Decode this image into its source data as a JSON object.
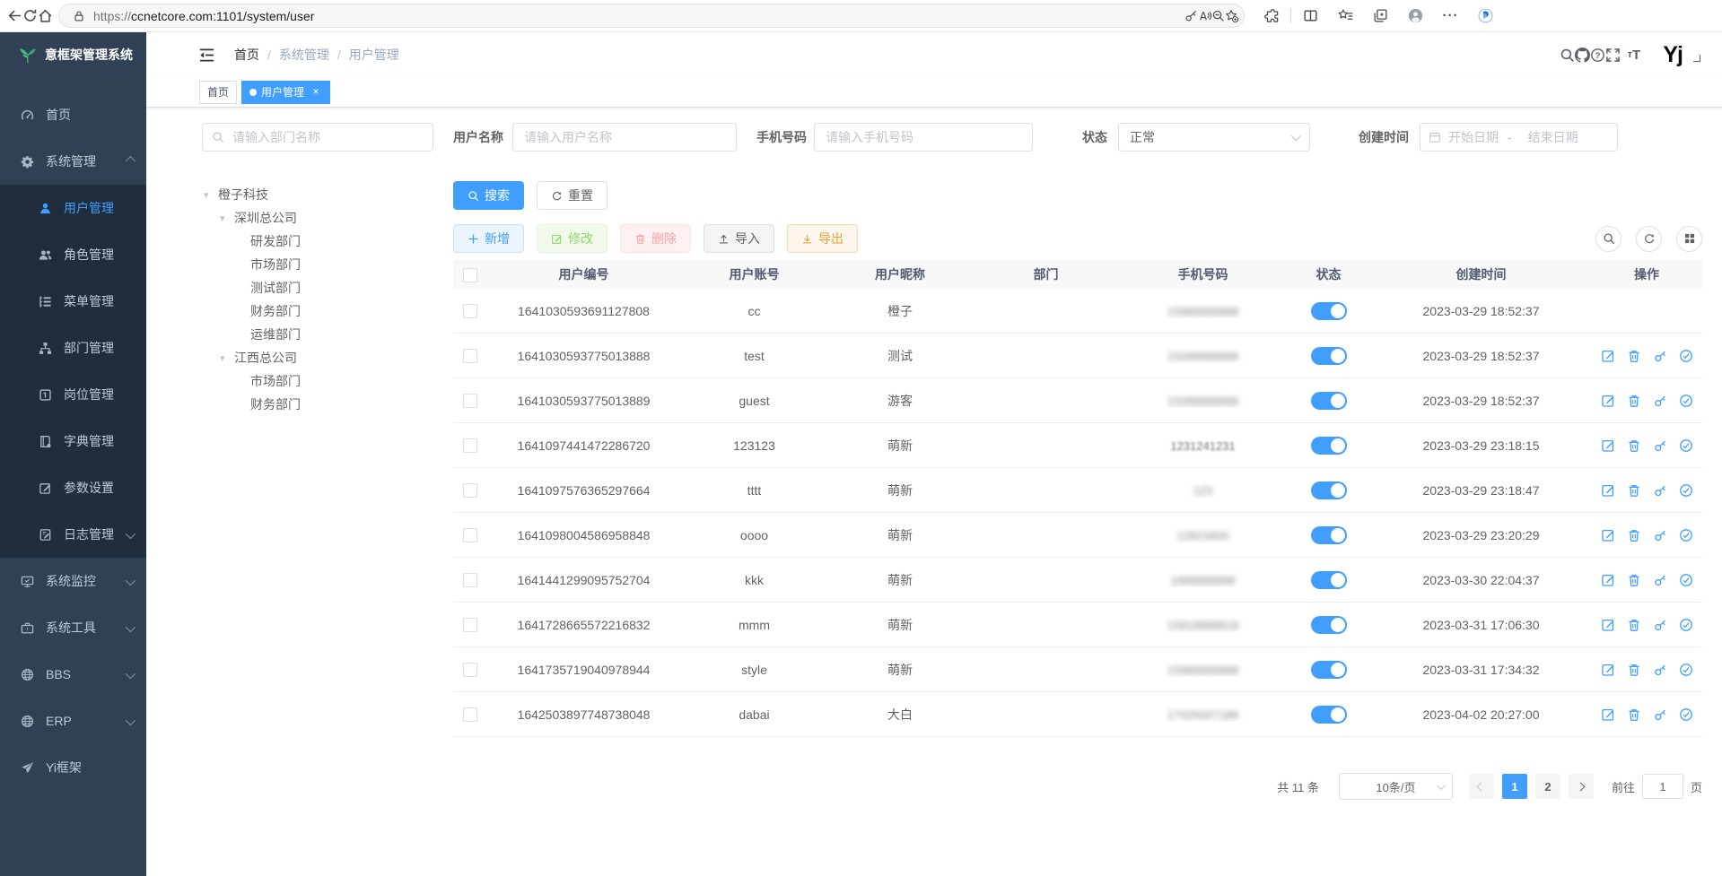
{
  "browser": {
    "url_scheme": "https://",
    "url_rest": "ccnetcore.com:1101/system/user"
  },
  "app": {
    "logo_title": "意框架管理系统",
    "breadcrumb": [
      "首页",
      "系统管理",
      "用户管理"
    ],
    "user_logo": "Yj"
  },
  "tags": [
    {
      "label": "首页",
      "active": false,
      "closable": false
    },
    {
      "label": "用户管理",
      "active": true,
      "closable": true
    }
  ],
  "sidebar_menu": [
    {
      "label": "首页",
      "icon": "dashboard-icon"
    },
    {
      "label": "系统管理",
      "icon": "gear-icon",
      "arrow": "up",
      "expanded": true,
      "children": [
        {
          "label": "用户管理",
          "icon": "user-icon",
          "active": true
        },
        {
          "label": "角色管理",
          "icon": "users-icon"
        },
        {
          "label": "菜单管理",
          "icon": "menu-list-icon"
        },
        {
          "label": "部门管理",
          "icon": "org-tree-icon"
        },
        {
          "label": "岗位管理",
          "icon": "badge-icon"
        },
        {
          "label": "字典管理",
          "icon": "dictionary-icon"
        },
        {
          "label": "参数设置",
          "icon": "edit-square-icon"
        },
        {
          "label": "日志管理",
          "icon": "log-icon",
          "arrow": "down"
        }
      ]
    },
    {
      "label": "系统监控",
      "icon": "monitor-icon",
      "arrow": "down"
    },
    {
      "label": "系统工具",
      "icon": "toolbox-icon",
      "arrow": "down"
    },
    {
      "label": "BBS",
      "icon": "globe-icon",
      "arrow": "down"
    },
    {
      "label": "ERP",
      "icon": "globe-icon",
      "arrow": "down"
    },
    {
      "label": "Yi框架",
      "icon": "paper-plane-icon"
    }
  ],
  "dept_panel": {
    "search_placeholder": "请输入部门名称",
    "tree": [
      {
        "label": "橙子科技",
        "expanded": true,
        "children": [
          {
            "label": "深圳总公司",
            "expanded": true,
            "children": [
              {
                "label": "研发部门"
              },
              {
                "label": "市场部门"
              },
              {
                "label": "测试部门"
              },
              {
                "label": "财务部门"
              },
              {
                "label": "运维部门"
              }
            ]
          },
          {
            "label": "江西总公司",
            "expanded": true,
            "children": [
              {
                "label": "市场部门"
              },
              {
                "label": "财务部门"
              }
            ]
          }
        ]
      }
    ]
  },
  "filters": {
    "username_label": "用户名称",
    "username_placeholder": "请输入用户名称",
    "phone_label": "手机号码",
    "phone_placeholder": "请输入手机号码",
    "status_label": "状态",
    "status_value": "正常",
    "created_label": "创建时间",
    "date_start_placeholder": "开始日期",
    "date_separator": "-",
    "date_end_placeholder": "结束日期"
  },
  "toolbar": {
    "search": "搜索",
    "reset": "重置",
    "add": "新增",
    "edit": "修改",
    "delete": "删除",
    "import": "导入",
    "export": "导出"
  },
  "table": {
    "headers": [
      "用户编号",
      "用户账号",
      "用户昵称",
      "部门",
      "手机号码",
      "状态",
      "创建时间",
      "操作"
    ],
    "rows": [
      {
        "id": "1641030593691127808",
        "account": "cc",
        "nickname": "橙子",
        "dept": "",
        "phone": "15888888888",
        "phone_blur": "heavy",
        "status": true,
        "created": "2023-03-29 18:52:37",
        "actions": false
      },
      {
        "id": "1641030593775013888",
        "account": "test",
        "nickname": "测试",
        "dept": "",
        "phone": "15098888888",
        "phone_blur": "heavy",
        "status": true,
        "created": "2023-03-29 18:52:37",
        "actions": true
      },
      {
        "id": "1641030593775013889",
        "account": "guest",
        "nickname": "游客",
        "dept": "",
        "phone": "15088888888",
        "phone_blur": "heavy",
        "status": true,
        "created": "2023-03-29 18:52:37",
        "actions": true
      },
      {
        "id": "1641097441472286720",
        "account": "123123",
        "nickname": "萌新",
        "dept": "",
        "phone": "1231241231",
        "phone_blur": "light",
        "status": true,
        "created": "2023-03-29 23:18:15",
        "actions": true
      },
      {
        "id": "1641097576365297664",
        "account": "tttt",
        "nickname": "萌新",
        "dept": "",
        "phone": "123",
        "phone_blur": "heavy",
        "status": true,
        "created": "2023-03-29 23:18:47",
        "actions": true
      },
      {
        "id": "1641098004586958848",
        "account": "oooo",
        "nickname": "萌新",
        "dept": "",
        "phone": "12823400",
        "phone_blur": "heavy",
        "status": true,
        "created": "2023-03-29 23:20:29",
        "actions": true
      },
      {
        "id": "1641441299095752704",
        "account": "kkk",
        "nickname": "萌新",
        "dept": "",
        "phone": "1888888888",
        "phone_blur": "heavy",
        "status": true,
        "created": "2023-03-30 22:04:37",
        "actions": true
      },
      {
        "id": "1641728665572216832",
        "account": "mmm",
        "nickname": "萌新",
        "dept": "",
        "phone": "15818888818",
        "phone_blur": "heavy",
        "status": true,
        "created": "2023-03-31 17:06:30",
        "actions": true
      },
      {
        "id": "1641735719040978944",
        "account": "style",
        "nickname": "萌新",
        "dept": "",
        "phone": "15888888888",
        "phone_blur": "heavy",
        "status": true,
        "created": "2023-03-31 17:34:32",
        "actions": true
      },
      {
        "id": "1642503897748738048",
        "account": "dabai",
        "nickname": "大白",
        "dept": "",
        "phone": "17025007188",
        "phone_blur": "heavy",
        "status": true,
        "created": "2023-04-02 20:27:00",
        "actions": true
      }
    ]
  },
  "pagination": {
    "total": "共 11 条",
    "page_size": "10条/页",
    "pages": [
      "1",
      "2"
    ],
    "active_page": "1",
    "goto_label": "前往",
    "goto_value": "1",
    "goto_suffix": "页"
  },
  "colors": {
    "primary": "#409EFF",
    "sidebar_bg": "#304156",
    "submenu_bg": "#1f2d3d",
    "success": "#67c23a",
    "danger": "#f56c6c",
    "warning": "#e6a23c"
  }
}
